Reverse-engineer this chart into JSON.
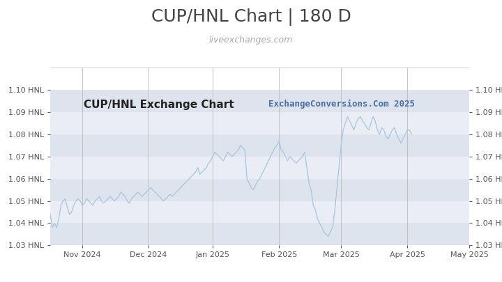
{
  "title": "CUP/HNL Chart | 180 D",
  "subtitle": "liveexchanges.com",
  "watermark": "ExchangeConversions.Com 2025",
  "chart_label": "CUP/HNL Exchange Chart",
  "ylim": [
    1.03,
    1.11
  ],
  "yticks": [
    1.03,
    1.04,
    1.05,
    1.06,
    1.07,
    1.08,
    1.09,
    1.1
  ],
  "line_color": "#a8c4e0",
  "bg_color": "#ffffff",
  "band_colors": [
    "#dde4ed",
    "#eaeef4"
  ],
  "title_fontsize": 18,
  "subtitle_fontsize": 9,
  "chart_label_fontsize": 11,
  "watermark_fontsize": 9,
  "tick_fontsize": 8,
  "x_labels": [
    "Nov 2024",
    "Dec 2024",
    "Jan 2025",
    "Feb 2025",
    "Mar 2025",
    "Apr 2025",
    "May 2025"
  ],
  "x_positions": [
    15,
    46,
    76,
    107,
    136,
    167,
    196
  ],
  "data_y": [
    1.044,
    1.038,
    1.04,
    1.038,
    1.042,
    1.048,
    1.05,
    1.051,
    1.047,
    1.044,
    1.045,
    1.048,
    1.05,
    1.051,
    1.05,
    1.048,
    1.049,
    1.051,
    1.05,
    1.049,
    1.048,
    1.05,
    1.051,
    1.052,
    1.05,
    1.049,
    1.05,
    1.051,
    1.052,
    1.051,
    1.05,
    1.051,
    1.052,
    1.054,
    1.053,
    1.052,
    1.05,
    1.049,
    1.051,
    1.052,
    1.053,
    1.054,
    1.053,
    1.052,
    1.053,
    1.054,
    1.055,
    1.056,
    1.055,
    1.054,
    1.053,
    1.052,
    1.051,
    1.05,
    1.051,
    1.052,
    1.053,
    1.052,
    1.053,
    1.054,
    1.055,
    1.056,
    1.057,
    1.058,
    1.059,
    1.06,
    1.061,
    1.062,
    1.063,
    1.065,
    1.062,
    1.063,
    1.064,
    1.065,
    1.067,
    1.068,
    1.07,
    1.072,
    1.071,
    1.07,
    1.069,
    1.068,
    1.07,
    1.072,
    1.071,
    1.07,
    1.071,
    1.072,
    1.073,
    1.075,
    1.074,
    1.073,
    1.06,
    1.058,
    1.056,
    1.055,
    1.057,
    1.059,
    1.06,
    1.062,
    1.064,
    1.066,
    1.068,
    1.07,
    1.072,
    1.074,
    1.075,
    1.077,
    1.073,
    1.072,
    1.07,
    1.068,
    1.07,
    1.069,
    1.068,
    1.067,
    1.068,
    1.069,
    1.07,
    1.072,
    1.065,
    1.058,
    1.055,
    1.048,
    1.046,
    1.042,
    1.04,
    1.038,
    1.036,
    1.035,
    1.034,
    1.036,
    1.038,
    1.045,
    1.055,
    1.065,
    1.075,
    1.082,
    1.085,
    1.088,
    1.086,
    1.084,
    1.082,
    1.085,
    1.087,
    1.088,
    1.086,
    1.085,
    1.083,
    1.082,
    1.085,
    1.088,
    1.086,
    1.082,
    1.08,
    1.083,
    1.082,
    1.079,
    1.078,
    1.08,
    1.082,
    1.083,
    1.08,
    1.078,
    1.076,
    1.078,
    1.08,
    1.082,
    1.082,
    1.08
  ]
}
